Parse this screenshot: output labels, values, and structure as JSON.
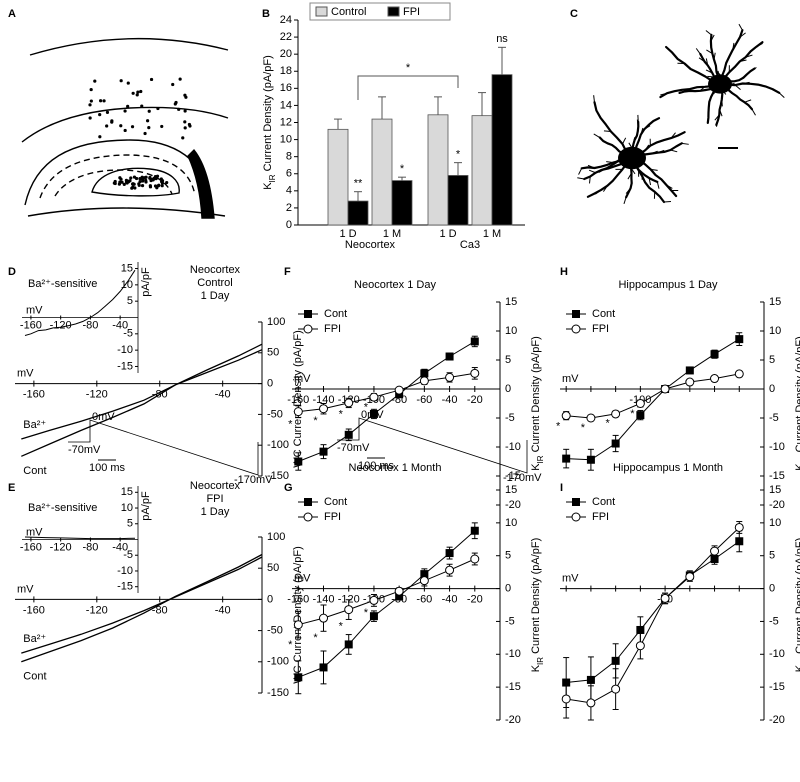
{
  "diagrams": [
    {
      "panel": "A"
    },
    {
      "panel": "C"
    }
  ],
  "chart_data": [
    {
      "panel": "B",
      "type": "bar",
      "ylabel_parts": [
        "K",
        "IR",
        " Current Density (pA/pF)"
      ],
      "categories": [
        "1 D",
        "1 M",
        "1 D",
        "1 M"
      ],
      "groups": [
        "Neocortex",
        "Ca3"
      ],
      "series": [
        {
          "name": "Control",
          "color": "#d9d9d9",
          "values": [
            11.2,
            12.4,
            12.9,
            12.8
          ],
          "errors": [
            1.2,
            2.6,
            2.1,
            2.7
          ]
        },
        {
          "name": "FPI",
          "color": "#000000",
          "values": [
            2.8,
            5.2,
            5.8,
            17.6
          ],
          "errors": [
            1.1,
            0.4,
            1.5,
            3.2
          ]
        }
      ],
      "ylim": [
        0,
        24
      ],
      "yticks": [
        0,
        2,
        4,
        6,
        8,
        10,
        12,
        14,
        16,
        18,
        20,
        22,
        24
      ],
      "legend": "top",
      "annotations": [
        {
          "text": "**",
          "series": 1,
          "index": 0
        },
        {
          "text": "*",
          "series": 1,
          "index": 1
        },
        {
          "text": "*",
          "series": 1,
          "index": 2
        },
        {
          "text": "ns",
          "series": 1,
          "index": 3
        }
      ],
      "bracket": {
        "text": "*",
        "series": 1,
        "from": 0,
        "to": 2
      }
    },
    {
      "panel": "D",
      "type": "line",
      "title_lines": [
        "Neocortex",
        "Control",
        "1 Day"
      ],
      "ylabel": "WC Current Density (pA/pF)",
      "xunit": "mV",
      "legend": "inline",
      "x": [
        -168,
        -150,
        -130,
        -110,
        -90,
        -70,
        -50,
        -30,
        -15
      ],
      "series": [
        {
          "name": "Ba²⁺",
          "color": "#000000",
          "values": [
            -90,
            -76,
            -61,
            -45,
            -27,
            -2,
            18,
            38,
            55
          ]
        },
        {
          "name": "Cont",
          "color": "#000000",
          "values": [
            -118,
            -98,
            -76,
            -55,
            -33,
            -2,
            22,
            45,
            64
          ]
        }
      ],
      "xlim": [
        -172,
        -15
      ],
      "ylim": [
        -150,
        100
      ],
      "xticks": [
        -160,
        -120,
        -80,
        -40
      ],
      "yticks": [
        -150,
        -100,
        -50,
        0,
        50,
        100
      ],
      "inset": {
        "title": "Ba²⁺-sensitive",
        "xunit": "mV",
        "yunit": "pA/pF",
        "x": [
          -168,
          -160,
          -150,
          -140,
          -130,
          -120,
          -110,
          -100,
          -90,
          -80,
          -70,
          -60,
          -50,
          -40,
          -30,
          -20
        ],
        "values": [
          -5.5,
          -5,
          -4,
          -3.8,
          -3.2,
          -3,
          -2.5,
          -2,
          -1.2,
          0,
          1.5,
          3.5,
          5.5,
          8,
          11,
          14.5
        ],
        "xlim": [
          -172,
          -16
        ],
        "ylim": [
          -17,
          17
        ],
        "xticks": [
          -160,
          -120,
          -80,
          -40
        ],
        "yticks": [
          -15,
          -10,
          -5,
          5,
          10,
          15
        ]
      },
      "protocol": {
        "top": "0mV",
        "hold": "-70mV",
        "bottom": "-170mV",
        "scale": "100 ms"
      }
    },
    {
      "panel": "E",
      "type": "line",
      "title_lines": [
        "Neocortex",
        "FPI",
        "1 Day"
      ],
      "ylabel": "WC Current Density (pA/pF)",
      "xunit": "mV",
      "legend": "inline",
      "x": [
        -168,
        -150,
        -130,
        -110,
        -90,
        -70,
        -50,
        -30,
        -15
      ],
      "series": [
        {
          "name": "Ba²⁺",
          "color": "#000000",
          "values": [
            -86,
            -72,
            -56,
            -38,
            -18,
            4,
            26,
            48,
            68
          ]
        },
        {
          "name": "Cont",
          "color": "#000000",
          "values": [
            -100,
            -84,
            -66,
            -46,
            -22,
            5,
            28,
            52,
            72
          ]
        }
      ],
      "xlim": [
        -172,
        -15
      ],
      "ylim": [
        -150,
        100
      ],
      "xticks": [
        -160,
        -120,
        -80,
        -40
      ],
      "yticks": [
        -150,
        -100,
        -50,
        0,
        50,
        100
      ],
      "inset": {
        "title": "Ba²⁺-sensitive",
        "xunit": "mV",
        "yunit": "pA/pF",
        "x": [
          -168,
          -140,
          -120,
          -100,
          -80,
          -60,
          -40,
          -20
        ],
        "values": [
          0.8,
          0.6,
          0.5,
          0.4,
          0.3,
          0.3,
          0.3,
          0.4
        ],
        "xlim": [
          -172,
          -16
        ],
        "ylim": [
          -17,
          17
        ],
        "xticks": [
          -160,
          -120,
          -80,
          -40
        ],
        "yticks": [
          -15,
          -10,
          -5,
          5,
          10,
          15
        ]
      }
    },
    {
      "panel": "F",
      "type": "line",
      "title": "Neocortex 1 Day",
      "ylabel_parts": [
        "K",
        "IR",
        " Current Density (pA/pF)"
      ],
      "xunit": "mV",
      "legend": "upper left",
      "x": [
        -160,
        -140,
        -120,
        -100,
        -80,
        -60,
        -40,
        -20
      ],
      "series": [
        {
          "name": "Cont",
          "color": "#000000",
          "marker": "square",
          "filled": true,
          "values": [
            -12.5,
            -10.8,
            -7.9,
            -4.3,
            -0.9,
            2.7,
            5.6,
            8.2
          ],
          "errors": [
            1.5,
            1.2,
            1.0,
            0.8,
            0.5,
            0.7,
            0.6,
            0.9
          ]
        },
        {
          "name": "FPI",
          "color": "#000000",
          "marker": "circle",
          "filled": false,
          "values": [
            -3.9,
            -3.4,
            -2.4,
            -1.4,
            -0.2,
            1.4,
            2.0,
            2.7
          ],
          "errors": [
            1.0,
            0.9,
            0.8,
            0.6,
            0.4,
            0.6,
            0.8,
            1.0
          ]
        }
      ],
      "xlim": [
        -165,
        0
      ],
      "ylim": [
        -20,
        15
      ],
      "xticks": [
        -160,
        -140,
        -120,
        -100,
        -80,
        -60,
        -40,
        -20
      ],
      "yticks": [
        -20,
        -15,
        -10,
        -5,
        0,
        5,
        10,
        15
      ],
      "annotations": [
        {
          "text": "*",
          "x": -160
        },
        {
          "text": "*",
          "x": -140
        },
        {
          "text": "*",
          "x": -120
        },
        {
          "text": "*",
          "x": -100
        }
      ],
      "protocol": {
        "top": "0mV",
        "hold": "-70mV",
        "bottom": "-170mV",
        "scale": "100 ms"
      }
    },
    {
      "panel": "G",
      "type": "line",
      "title": "Neocortex 1 Month",
      "ylabel_parts": [
        "K",
        "IR",
        " Current Density (pA/pF)"
      ],
      "xunit": "mV",
      "legend": "upper left",
      "x": [
        -160,
        -140,
        -120,
        -100,
        -80,
        -60,
        -40,
        -20
      ],
      "series": [
        {
          "name": "Cont",
          "color": "#000000",
          "marker": "square",
          "filled": true,
          "values": [
            -13.5,
            -12,
            -8.5,
            -4.2,
            -1.2,
            2.2,
            5.4,
            8.8
          ],
          "errors": [
            2.5,
            2.5,
            1.5,
            0.8,
            0.4,
            0.8,
            0.9,
            1.2
          ]
        },
        {
          "name": "FPI",
          "color": "#000000",
          "marker": "circle",
          "filled": false,
          "values": [
            -5.5,
            -4.5,
            -3.2,
            -1.8,
            -0.4,
            1.2,
            2.8,
            4.5
          ],
          "errors": [
            2.0,
            2.0,
            1.5,
            0.9,
            0.5,
            0.8,
            0.9,
            0.9
          ]
        }
      ],
      "xlim": [
        -165,
        0
      ],
      "ylim": [
        -20,
        15
      ],
      "xticks": [
        -160,
        -140,
        -120,
        -100,
        -80,
        -60,
        -40,
        -20
      ],
      "yticks": [
        -20,
        -15,
        -10,
        -5,
        0,
        5,
        10,
        15
      ],
      "annotations": [
        {
          "text": "*",
          "x": -160
        },
        {
          "text": "*",
          "x": -140
        },
        {
          "text": "*",
          "x": -120
        },
        {
          "text": "*",
          "x": -100
        }
      ]
    },
    {
      "panel": "H",
      "type": "line",
      "title": "Hippocampus 1 Day",
      "ylabel_parts": [
        "K",
        "IR",
        " Current Density (pA/pF)"
      ],
      "xunit": "mV",
      "legend": "upper left",
      "x": [
        -160,
        -140,
        -120,
        -100,
        -80,
        -60,
        -40,
        -20
      ],
      "series": [
        {
          "name": "Cont",
          "color": "#000000",
          "marker": "square",
          "filled": true,
          "values": [
            -12,
            -12.2,
            -9.4,
            -4.5,
            0,
            3.2,
            6.0,
            8.6
          ],
          "errors": [
            1.6,
            1.8,
            1.4,
            0.8,
            0.4,
            0.4,
            0.7,
            1.1
          ]
        },
        {
          "name": "FPI",
          "color": "#000000",
          "marker": "circle",
          "filled": false,
          "values": [
            -4.6,
            -5,
            -4.3,
            -2.5,
            0,
            1.2,
            1.8,
            2.6
          ],
          "errors": [
            0.7,
            0.5,
            0.5,
            0.6,
            0.3,
            0.3,
            0.4,
            0.4
          ]
        }
      ],
      "xlim": [
        -165,
        0
      ],
      "ylim": [
        -20,
        15
      ],
      "xticks": [
        -100
      ],
      "x_minor_ticks": [
        -160,
        -140,
        -120,
        -80,
        -60,
        -40,
        -20
      ],
      "yticks": [
        -20,
        -15,
        -10,
        -5,
        0,
        5,
        10,
        15
      ],
      "annotations": [
        {
          "text": "*",
          "x": -160
        },
        {
          "text": "*",
          "x": -140
        },
        {
          "text": "*",
          "x": -120
        },
        {
          "text": "*",
          "x": -100
        }
      ]
    },
    {
      "panel": "I",
      "type": "line",
      "title": "Hippocampus 1 Month",
      "ylabel_parts": [
        "K",
        "IR",
        " Current Density (pA/pF)"
      ],
      "xunit": "mV",
      "legend": "upper left",
      "x": [
        -160,
        -140,
        -120,
        -100,
        -80,
        -60,
        -40,
        -20
      ],
      "series": [
        {
          "name": "Cont",
          "color": "#000000",
          "marker": "square",
          "filled": true,
          "values": [
            -14.3,
            -13.9,
            -11,
            -6.3,
            -1.5,
            2,
            4.5,
            7.2
          ],
          "errors": [
            3.8,
            3.5,
            2.6,
            2.0,
            0.8,
            0.7,
            0.8,
            1.6
          ]
        },
        {
          "name": "FPI",
          "color": "#000000",
          "marker": "circle",
          "filled": false,
          "values": [
            -16.8,
            -17.4,
            -15.3,
            -8.7,
            -1.5,
            1.8,
            5.7,
            9.3
          ],
          "errors": [
            2.9,
            2.6,
            3.1,
            2.0,
            0.8,
            0.7,
            0.8,
            0.9
          ]
        }
      ],
      "xlim": [
        -165,
        0
      ],
      "ylim": [
        -20,
        15
      ],
      "xticks": [
        -80
      ],
      "x_minor_ticks": [
        -160,
        -140,
        -120,
        -100,
        -60,
        -40,
        -20
      ],
      "yticks": [
        -20,
        -15,
        -10,
        -5,
        0,
        5,
        10,
        15
      ]
    }
  ]
}
